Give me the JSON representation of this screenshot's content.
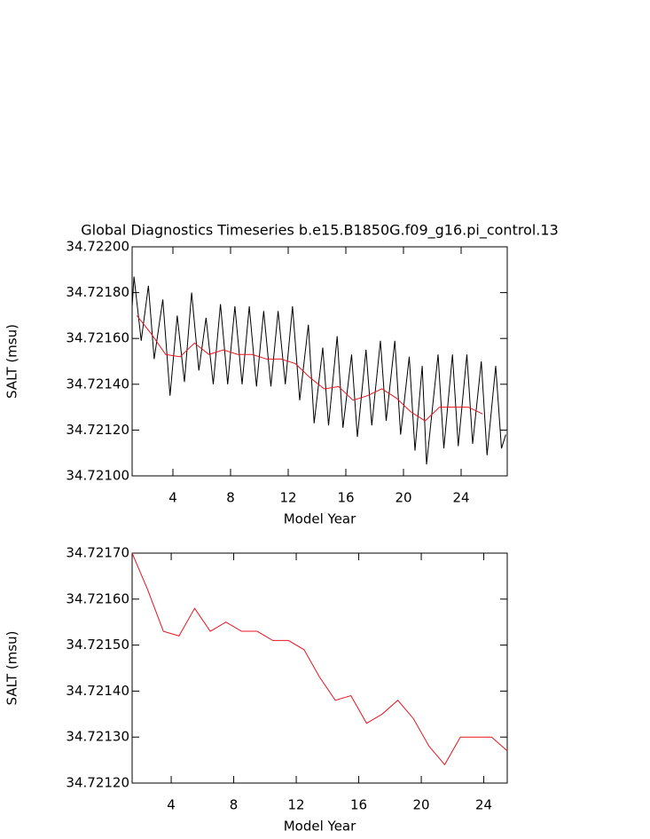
{
  "chart_data": [
    {
      "type": "line",
      "title": "Global Diagnostics Timeseries b.e15.B1850G.f09_g16.pi_control.13",
      "x_label": "Model Year",
      "y_label": "SALT (msu)",
      "xlim": [
        1.17,
        27.2
      ],
      "xticks": [
        4,
        8,
        12,
        16,
        20,
        24
      ],
      "ylim": [
        34.721,
        34.722
      ],
      "yticks": [
        {
          "value": 34.721,
          "label": "34.72100"
        },
        {
          "value": 34.7212,
          "label": "34.72120"
        },
        {
          "value": 34.7214,
          "label": "34.72140"
        },
        {
          "value": 34.7216,
          "label": "34.72160"
        },
        {
          "value": 34.7218,
          "label": "34.72180"
        },
        {
          "value": 34.722,
          "label": "34.72200"
        }
      ],
      "series": [
        {
          "color": "#000000",
          "x": [
            1.17,
            1.3,
            1.8,
            2.3,
            2.7,
            3.3,
            3.8,
            4.3,
            4.8,
            5.3,
            5.8,
            6.3,
            6.8,
            7.3,
            7.8,
            8.3,
            8.8,
            9.3,
            9.8,
            10.3,
            10.8,
            11.3,
            11.8,
            12.3,
            12.8,
            13.4,
            13.8,
            14.4,
            14.8,
            15.4,
            15.8,
            16.4,
            16.8,
            17.4,
            17.8,
            18.4,
            18.8,
            19.4,
            19.8,
            20.4,
            20.8,
            21.3,
            21.6,
            22.4,
            22.8,
            23.4,
            23.8,
            24.4,
            24.8,
            25.4,
            25.8,
            26.4,
            26.8,
            27.1
          ],
          "values": [
            34.72174,
            34.72187,
            34.72159,
            34.72183,
            34.72151,
            34.72177,
            34.72135,
            34.7217,
            34.72141,
            34.7218,
            34.72146,
            34.72169,
            34.7214,
            34.72175,
            34.7214,
            34.72174,
            34.7214,
            34.72174,
            34.72139,
            34.72172,
            34.72139,
            34.72172,
            34.7214,
            34.72174,
            34.72133,
            34.72166,
            34.72123,
            34.72156,
            34.72122,
            34.72161,
            34.72121,
            34.72153,
            34.72117,
            34.72155,
            34.72122,
            34.72159,
            34.72124,
            34.72159,
            34.72118,
            34.72152,
            34.72111,
            34.72148,
            34.72105,
            34.72153,
            34.72112,
            34.72153,
            34.72113,
            34.72153,
            34.72114,
            34.7215,
            34.72109,
            34.72148,
            34.72112,
            34.72118
          ]
        },
        {
          "color": "#e8141e",
          "x": [
            1.5,
            2.5,
            3.5,
            4.5,
            5.5,
            6.5,
            7.5,
            8.5,
            9.5,
            10.5,
            11.5,
            12.5,
            13.5,
            14.5,
            15.5,
            16.5,
            17.5,
            18.5,
            19.5,
            20.5,
            21.5,
            22.5,
            23.5,
            24.5,
            25.5
          ],
          "values": [
            34.7217,
            34.72162,
            34.72153,
            34.72152,
            34.72158,
            34.72153,
            34.72155,
            34.72153,
            34.72153,
            34.72151,
            34.72151,
            34.72149,
            34.72143,
            34.72138,
            34.72139,
            34.72133,
            34.72135,
            34.72138,
            34.72134,
            34.72128,
            34.72124,
            34.7213,
            34.7213,
            34.7213,
            34.72127
          ]
        }
      ]
    },
    {
      "type": "line",
      "x_label": "Model Year",
      "y_label": "SALT (msu)",
      "xlim": [
        1.5,
        25.5
      ],
      "xticks": [
        4,
        8,
        12,
        16,
        20,
        24
      ],
      "ylim": [
        34.7212,
        34.7217
      ],
      "yticks": [
        {
          "value": 34.7212,
          "label": "34.72120"
        },
        {
          "value": 34.7213,
          "label": "34.72130"
        },
        {
          "value": 34.7214,
          "label": "34.72140"
        },
        {
          "value": 34.7215,
          "label": "34.72150"
        },
        {
          "value": 34.7216,
          "label": "34.72160"
        },
        {
          "value": 34.7217,
          "label": "34.72170"
        }
      ],
      "series": [
        {
          "color": "#e8141e",
          "x": [
            1.5,
            2.5,
            3.5,
            4.5,
            5.5,
            6.5,
            7.5,
            8.5,
            9.5,
            10.5,
            11.5,
            12.5,
            13.5,
            14.5,
            15.5,
            16.5,
            17.5,
            18.5,
            19.5,
            20.5,
            21.5,
            22.5,
            23.5,
            24.5,
            25.5
          ],
          "values": [
            34.7217,
            34.72162,
            34.72153,
            34.72152,
            34.72158,
            34.72153,
            34.72155,
            34.72153,
            34.72153,
            34.72151,
            34.72151,
            34.72149,
            34.72143,
            34.72138,
            34.72139,
            34.72133,
            34.72135,
            34.72138,
            34.72134,
            34.72128,
            34.72124,
            34.7213,
            34.7213,
            34.7213,
            34.72127
          ]
        }
      ]
    }
  ]
}
